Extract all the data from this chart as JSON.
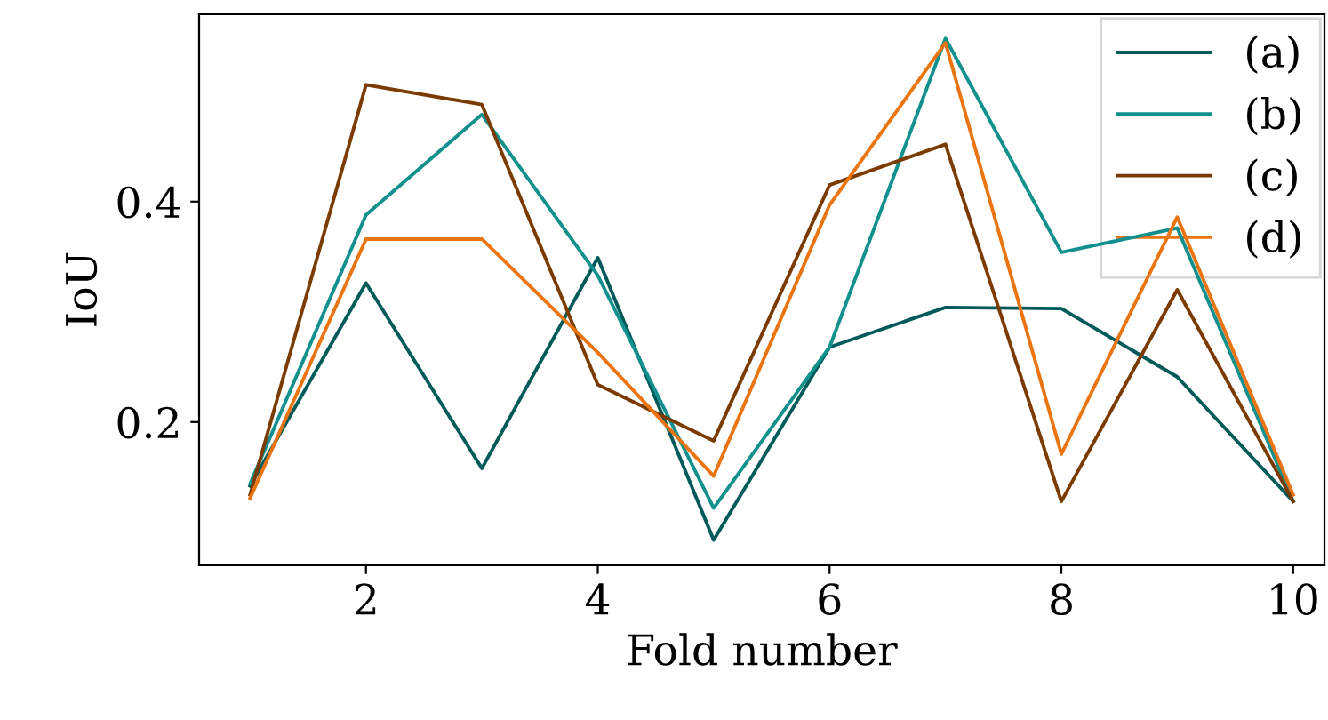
{
  "chart_data": {
    "type": "line",
    "xlabel": "Fold number",
    "ylabel": "IoU",
    "x": [
      1,
      2,
      3,
      4,
      5,
      6,
      7,
      8,
      9,
      10
    ],
    "series": [
      {
        "name": "(a)",
        "color": "#005a5a",
        "values": [
          0.142,
          0.326,
          0.158,
          0.349,
          0.093,
          0.268,
          0.304,
          0.303,
          0.241,
          0.128
        ]
      },
      {
        "name": "(b)",
        "color": "#12908e",
        "values": [
          0.144,
          0.388,
          0.479,
          0.333,
          0.122,
          0.268,
          0.548,
          0.354,
          0.376,
          0.128
        ]
      },
      {
        "name": "(c)",
        "color": "#7b3b00",
        "values": [
          0.134,
          0.506,
          0.488,
          0.234,
          0.183,
          0.415,
          0.452,
          0.128,
          0.32,
          0.128
        ]
      },
      {
        "name": "(d)",
        "color": "#ea7410",
        "values": [
          0.131,
          0.366,
          0.366,
          0.263,
          0.151,
          0.397,
          0.544,
          0.171,
          0.386,
          0.134
        ]
      }
    ],
    "xlim": [
      0.56,
      10.27
    ],
    "ylim": [
      0.07,
      0.57
    ],
    "xticks": [
      2,
      4,
      6,
      8,
      10
    ],
    "yticks": [
      0.2,
      0.4
    ],
    "grid": false,
    "legend": "top right",
    "marker": "none",
    "line_style": "solid"
  }
}
